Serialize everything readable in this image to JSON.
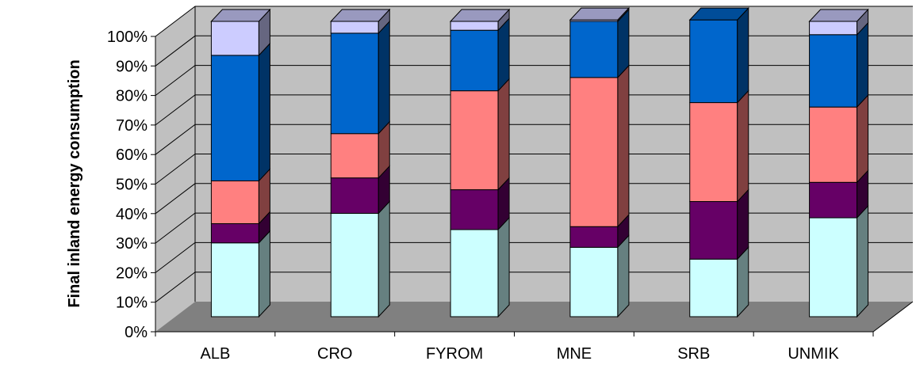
{
  "chart_data": {
    "type": "bar",
    "stacked": true,
    "percent_stacked": true,
    "three_d": true,
    "ylabel": "Final inland energy consumption",
    "xlabel": "",
    "ylim": [
      0,
      100
    ],
    "y_ticks": [
      "0%",
      "10%",
      "20%",
      "30%",
      "40%",
      "50%",
      "60%",
      "70%",
      "80%",
      "90%",
      "100%"
    ],
    "categories": [
      "ALB",
      "CRO",
      "FYROM",
      "MNE",
      "SRB",
      "UNMIK"
    ],
    "grid": true,
    "legend": "none",
    "series": [
      {
        "color": "#ccffff",
        "values": [
          25,
          35,
          29.5,
          23.5,
          19.5,
          33.5
        ]
      },
      {
        "color": "#660066",
        "values": [
          6.5,
          12,
          13.5,
          7,
          19.5,
          12
        ]
      },
      {
        "color": "#ff8080",
        "values": [
          14.5,
          15,
          33.5,
          50.5,
          33.5,
          25.5
        ]
      },
      {
        "color": "#0066cc",
        "values": [
          42.5,
          34,
          20.5,
          19,
          28,
          24.5
        ]
      },
      {
        "color": "#ccccff",
        "values": [
          11.5,
          4,
          3,
          0.5,
          0,
          4.5
        ]
      }
    ]
  }
}
